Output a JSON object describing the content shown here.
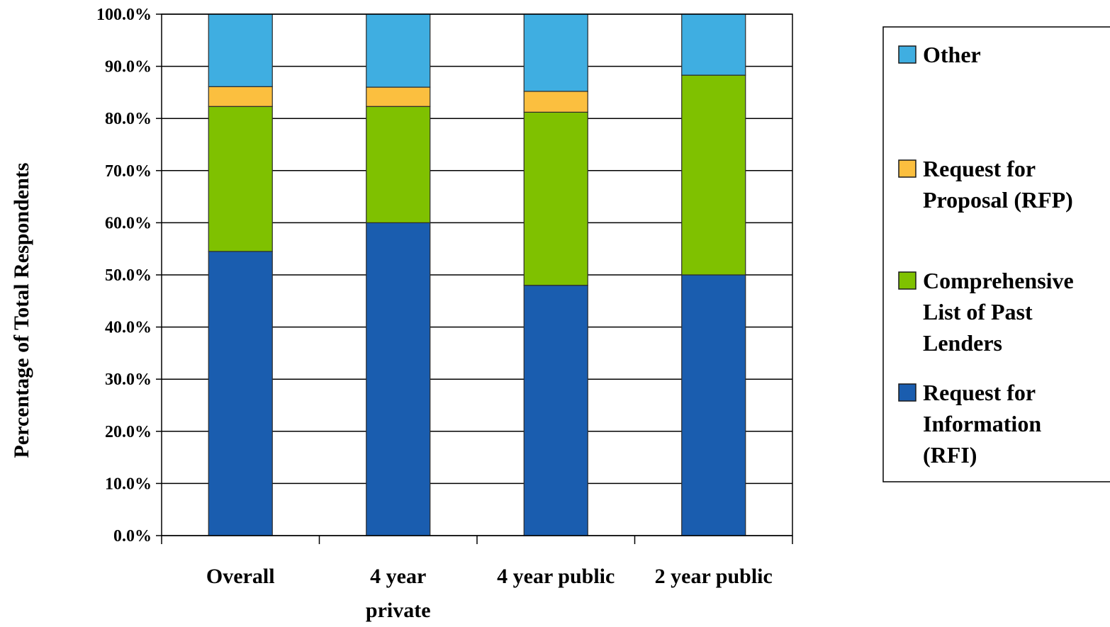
{
  "chart_data": {
    "type": "bar",
    "stacked": true,
    "title": "",
    "xlabel": "",
    "ylabel": "Percentage of Total Respondents",
    "ylim": [
      0,
      100
    ],
    "y_ticks": [
      "0.0%",
      "10.0%",
      "20.0%",
      "30.0%",
      "40.0%",
      "50.0%",
      "60.0%",
      "70.0%",
      "80.0%",
      "90.0%",
      "100.0%"
    ],
    "grid": true,
    "legend_position": "right",
    "categories": [
      [
        "Overall"
      ],
      [
        "4 year",
        "private"
      ],
      [
        "4 year public"
      ],
      [
        "2 year public"
      ]
    ],
    "series": [
      {
        "name": "Request for Information (RFI)",
        "legend_lines": [
          "Request for",
          "Information",
          "(RFI)"
        ],
        "color": "#1A5DAF",
        "values": [
          54.5,
          60.0,
          48.0,
          50.0
        ]
      },
      {
        "name": "Comprehensive List of Past Lenders",
        "legend_lines": [
          "Comprehensive",
          "List of Past",
          "Lenders"
        ],
        "color": "#7FC100",
        "values": [
          27.8,
          22.3,
          33.2,
          38.3
        ]
      },
      {
        "name": "Request for Proposal (RFP)",
        "legend_lines": [
          "Request for",
          "Proposal (RFP)"
        ],
        "color": "#FBBF3F",
        "values": [
          3.8,
          3.7,
          4.0,
          0.0
        ]
      },
      {
        "name": "Other",
        "legend_lines": [
          "Other"
        ],
        "color": "#3FAEE1",
        "values": [
          13.9,
          14.0,
          14.8,
          11.7
        ]
      }
    ],
    "legend_order": [
      3,
      2,
      1,
      0
    ]
  }
}
